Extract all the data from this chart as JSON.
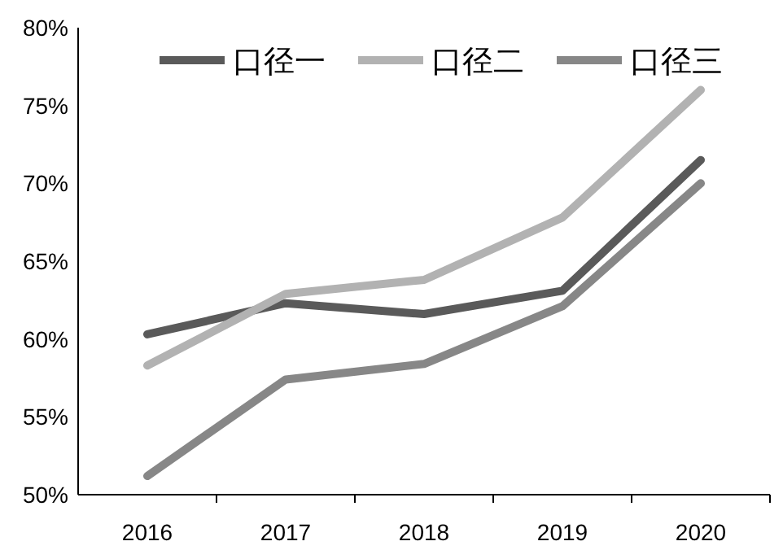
{
  "chart_data": {
    "type": "line",
    "categories": [
      "2016",
      "2017",
      "2018",
      "2019",
      "2020"
    ],
    "series": [
      {
        "name": "口径一",
        "color": "#5a5a5a",
        "values": [
          60.3,
          62.3,
          61.6,
          63.1,
          71.5
        ]
      },
      {
        "name": "口径二",
        "color": "#b2b2b2",
        "values": [
          58.3,
          62.9,
          63.8,
          67.8,
          76.0
        ]
      },
      {
        "name": "口径三",
        "color": "#878787",
        "values": [
          51.2,
          57.4,
          58.4,
          62.1,
          70.0
        ]
      }
    ],
    "ylim": [
      50,
      80
    ],
    "yticks": [
      {
        "value": 50,
        "label": "50%"
      },
      {
        "value": 55,
        "label": "55%"
      },
      {
        "value": 60,
        "label": "60%"
      },
      {
        "value": 65,
        "label": "65%"
      },
      {
        "value": 70,
        "label": "70%"
      },
      {
        "value": 75,
        "label": "75%"
      },
      {
        "value": 80,
        "label": "80%"
      }
    ],
    "legend": "top",
    "grid": false,
    "marker": "none",
    "line_style": "solid"
  }
}
